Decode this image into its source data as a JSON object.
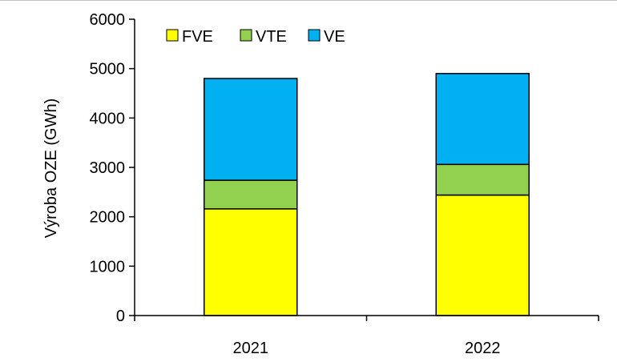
{
  "chart_data": {
    "type": "bar",
    "stacked": true,
    "categories": [
      "2021",
      "2022"
    ],
    "series": [
      {
        "name": "FVE",
        "values": [
          2160,
          2440
        ],
        "color": "#ffff00"
      },
      {
        "name": "VTE",
        "values": [
          580,
          620
        ],
        "color": "#92d050"
      },
      {
        "name": "VE",
        "values": [
          2060,
          1840
        ],
        "color": "#00b0f0"
      }
    ],
    "ylabel": "Výroba OZE (GWh)",
    "xlabel": "",
    "ylim": [
      0,
      6000
    ],
    "yticks": [
      0,
      1000,
      2000,
      3000,
      4000,
      5000,
      6000
    ],
    "grid": false,
    "legend": "top-left"
  }
}
